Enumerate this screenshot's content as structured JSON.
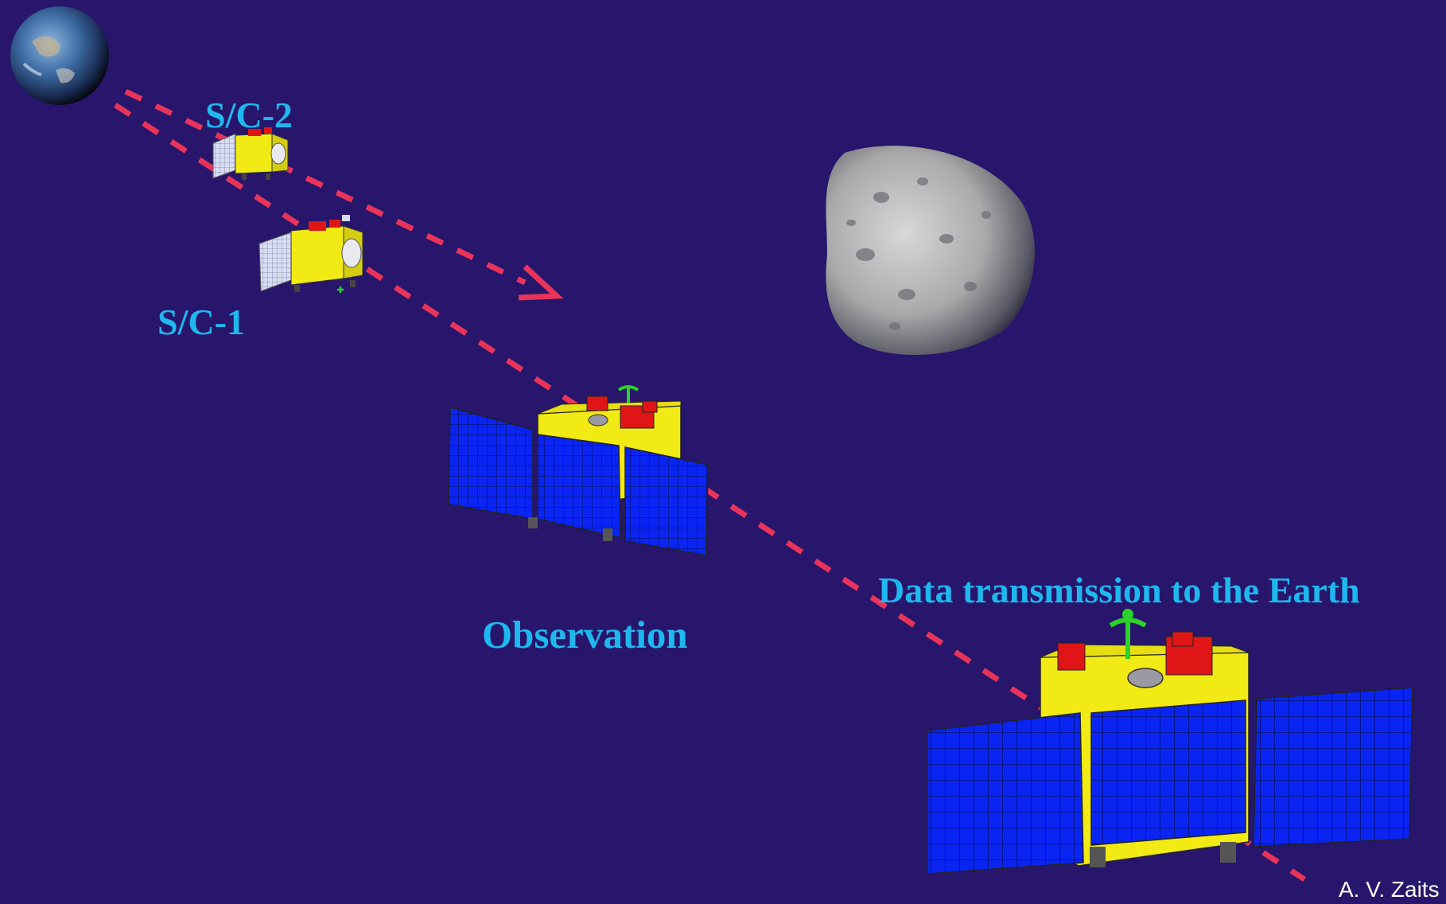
{
  "labels": {
    "sc2": "S/C-2",
    "sc1": "S/C-1",
    "observation": "Observation",
    "data_transmission": "Data transmission to the Earth"
  },
  "credit": "A. V. Zaits",
  "colors": {
    "background": "#27166b",
    "label": "#1fb8ee",
    "trajectory": "#e8345a",
    "bus": "#f2ea14",
    "panel": "#0a25f2",
    "module": "#e01616",
    "antenna": "#2bd22b"
  },
  "objects": {
    "earth": "earth-globe",
    "asteroid": "asteroid",
    "spacecraft": [
      "sc2-small",
      "sc1-small",
      "observation-spacecraft",
      "transmission-spacecraft"
    ]
  }
}
